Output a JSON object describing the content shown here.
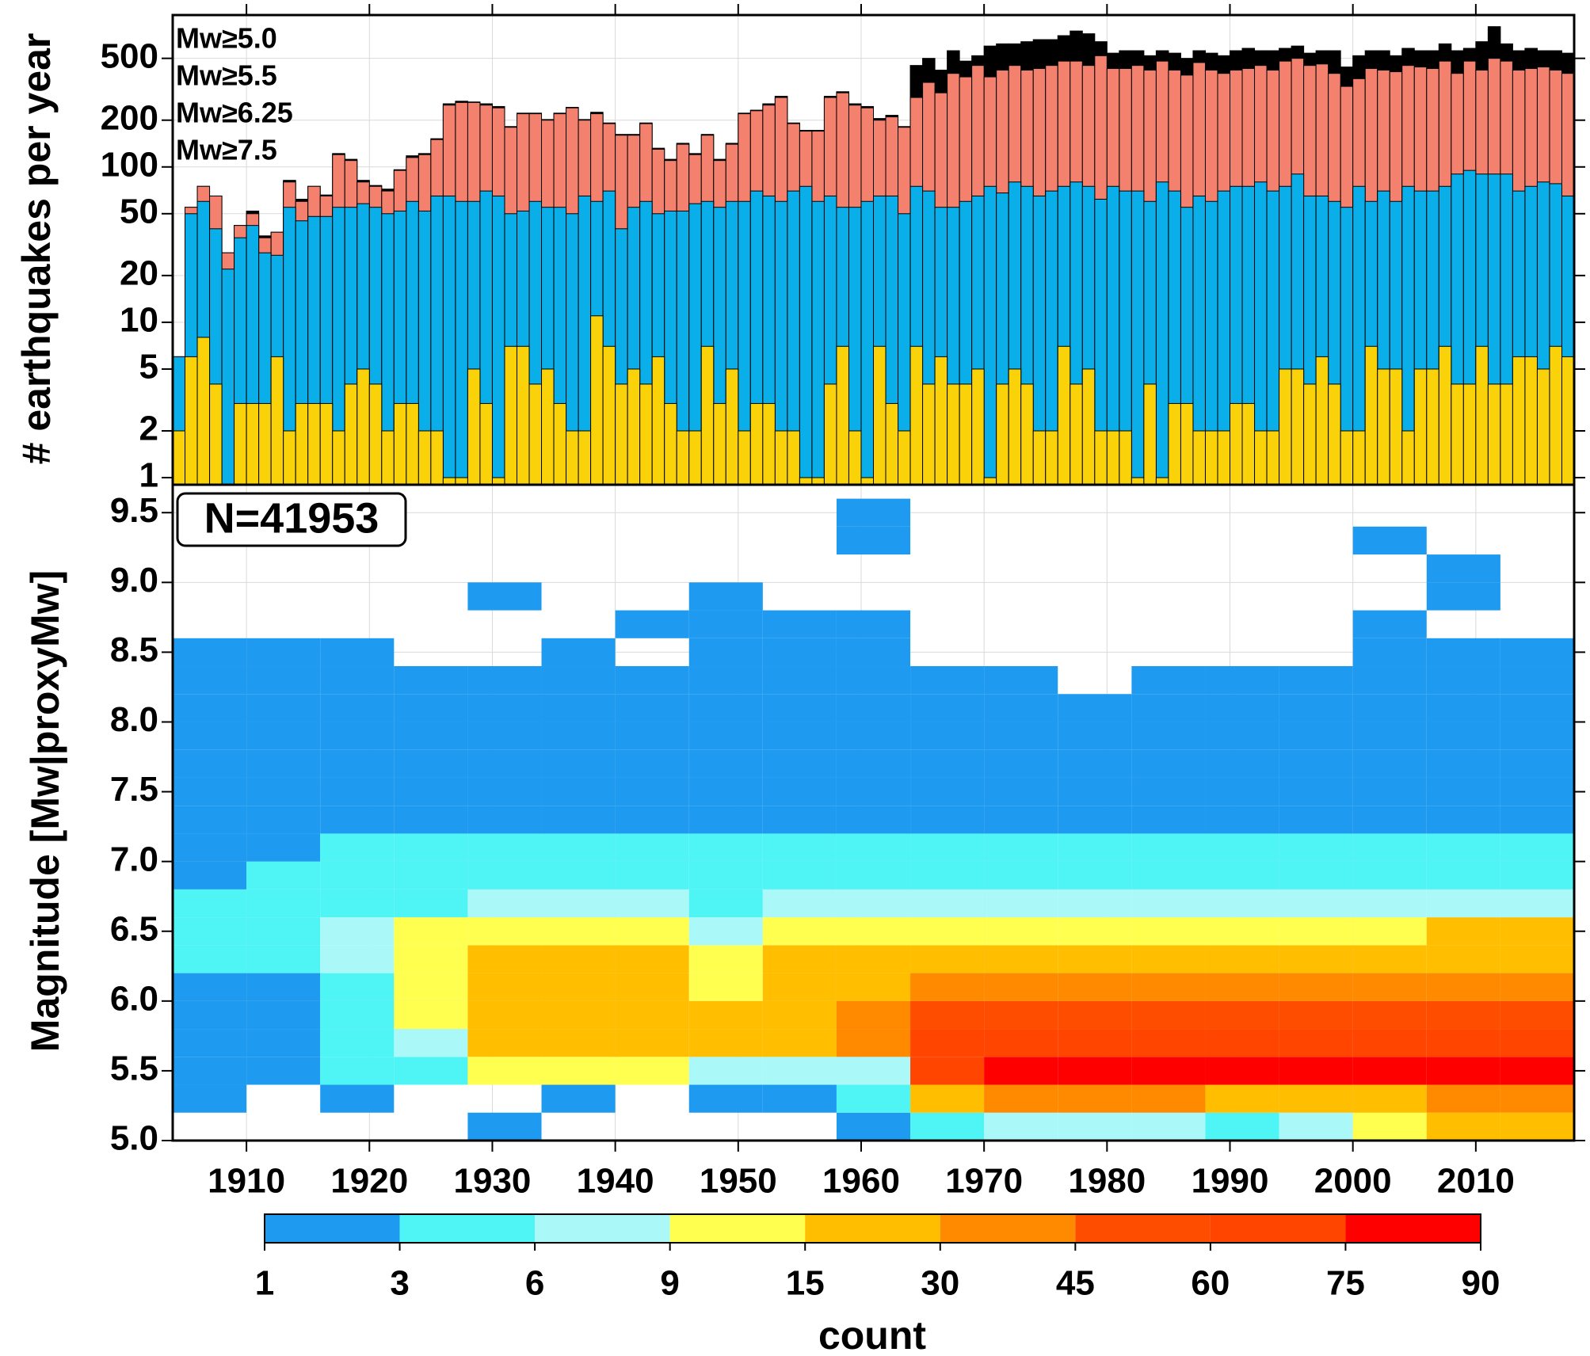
{
  "chart_data": [
    {
      "type": "bar",
      "ylabel": "# earthquakes per year",
      "log_scale": true,
      "grid": true,
      "legend": "upper left",
      "xlim": [
        1904,
        2018
      ],
      "ylim": [
        0.9,
        950
      ],
      "yticks": [
        1,
        2,
        5,
        10,
        20,
        50,
        100,
        200,
        500
      ],
      "x": [
        1904,
        1905,
        1906,
        1907,
        1908,
        1909,
        1910,
        1911,
        1912,
        1913,
        1914,
        1915,
        1916,
        1917,
        1918,
        1919,
        1920,
        1921,
        1922,
        1923,
        1924,
        1925,
        1926,
        1927,
        1928,
        1929,
        1930,
        1931,
        1932,
        1933,
        1934,
        1935,
        1936,
        1937,
        1938,
        1939,
        1940,
        1941,
        1942,
        1943,
        1944,
        1945,
        1946,
        1947,
        1948,
        1949,
        1950,
        1951,
        1952,
        1953,
        1954,
        1955,
        1956,
        1957,
        1958,
        1959,
        1960,
        1961,
        1962,
        1963,
        1964,
        1965,
        1966,
        1967,
        1968,
        1969,
        1970,
        1971,
        1972,
        1973,
        1974,
        1975,
        1976,
        1977,
        1978,
        1979,
        1980,
        1981,
        1982,
        1983,
        1984,
        1985,
        1986,
        1987,
        1988,
        1989,
        1990,
        1991,
        1992,
        1993,
        1994,
        1995,
        1996,
        1997,
        1998,
        1999,
        2000,
        2001,
        2002,
        2003,
        2004,
        2005,
        2006,
        2007,
        2008,
        2009,
        2010,
        2011,
        2012,
        2013,
        2014,
        2015,
        2016,
        2017
      ],
      "series": [
        {
          "name": "Mw≥5.0",
          "color": "#000000",
          "values": [
            6,
            55,
            75,
            65,
            28,
            42,
            52,
            36,
            38,
            82,
            62,
            75,
            66,
            122,
            112,
            82,
            76,
            72,
            96,
            118,
            122,
            152,
            255,
            265,
            262,
            255,
            245,
            182,
            222,
            222,
            202,
            222,
            242,
            202,
            225,
            192,
            162,
            162,
            192,
            132,
            112,
            142,
            122,
            162,
            112,
            142,
            222,
            232,
            255,
            285,
            192,
            172,
            172,
            285,
            305,
            255,
            245,
            205,
            215,
            182,
            450,
            500,
            420,
            560,
            480,
            520,
            600,
            620,
            620,
            640,
            660,
            660,
            700,
            750,
            720,
            640,
            540,
            560,
            560,
            520,
            560,
            540,
            500,
            560,
            540,
            520,
            560,
            580,
            560,
            560,
            580,
            600,
            540,
            560,
            560,
            440,
            520,
            560,
            560,
            520,
            580,
            560,
            560,
            620,
            560,
            580,
            640,
            800,
            620,
            560,
            580,
            560,
            560,
            540
          ]
        },
        {
          "name": "Mw≥5.5",
          "color": "#f4806e",
          "values": [
            6,
            55,
            75,
            65,
            28,
            42,
            50,
            35,
            38,
            80,
            60,
            75,
            65,
            120,
            110,
            80,
            75,
            70,
            95,
            115,
            120,
            150,
            250,
            260,
            260,
            250,
            240,
            180,
            220,
            220,
            200,
            220,
            240,
            200,
            220,
            190,
            160,
            160,
            190,
            130,
            110,
            140,
            120,
            160,
            110,
            140,
            220,
            230,
            250,
            280,
            190,
            170,
            170,
            280,
            300,
            250,
            240,
            200,
            210,
            180,
            280,
            350,
            300,
            400,
            380,
            450,
            380,
            420,
            450,
            420,
            430,
            450,
            480,
            480,
            450,
            520,
            430,
            430,
            450,
            420,
            480,
            420,
            390,
            470,
            420,
            400,
            420,
            430,
            450,
            420,
            480,
            500,
            450,
            460,
            400,
            330,
            370,
            430,
            420,
            410,
            450,
            440,
            430,
            480,
            400,
            480,
            420,
            500,
            480,
            420,
            430,
            440,
            420,
            400
          ]
        },
        {
          "name": "Mw≥6.25",
          "color": "#0aaee8",
          "values": [
            6,
            50,
            60,
            40,
            22,
            35,
            42,
            28,
            27,
            55,
            45,
            48,
            48,
            55,
            55,
            58,
            55,
            50,
            52,
            60,
            52,
            65,
            65,
            60,
            60,
            70,
            65,
            50,
            52,
            60,
            55,
            55,
            50,
            65,
            60,
            70,
            40,
            55,
            60,
            50,
            52,
            52,
            58,
            60,
            55,
            60,
            60,
            70,
            65,
            60,
            70,
            75,
            60,
            65,
            55,
            55,
            60,
            65,
            65,
            50,
            75,
            70,
            55,
            55,
            60,
            65,
            75,
            68,
            80,
            75,
            65,
            70,
            75,
            80,
            75,
            62,
            75,
            70,
            70,
            60,
            80,
            70,
            55,
            65,
            60,
            70,
            75,
            75,
            80,
            70,
            75,
            90,
            65,
            65,
            60,
            55,
            75,
            60,
            70,
            60,
            75,
            70,
            70,
            75,
            90,
            95,
            90,
            90,
            90,
            70,
            75,
            80,
            78,
            65
          ]
        },
        {
          "name": "Mw≥7.5",
          "color": "#f9d20a",
          "values": [
            2,
            6,
            8,
            4,
            0,
            3,
            3,
            3,
            6,
            2,
            3,
            3,
            3,
            2,
            4,
            5,
            4,
            2,
            3,
            3,
            2,
            2,
            1,
            1,
            5,
            3,
            1,
            7,
            7,
            4,
            5,
            3,
            2,
            2,
            11,
            7,
            4,
            5,
            4,
            6,
            3,
            2,
            2,
            7,
            3,
            5,
            2,
            3,
            3,
            2,
            2,
            1,
            1,
            4,
            7,
            2,
            1,
            7,
            3,
            2,
            7,
            4,
            6,
            4,
            4,
            5,
            1,
            4,
            5,
            4,
            2,
            2,
            7,
            4,
            5,
            2,
            2,
            2,
            1,
            4,
            1,
            3,
            3,
            2,
            2,
            2,
            3,
            3,
            2,
            2,
            5,
            5,
            4,
            6,
            4,
            2,
            2,
            7,
            5,
            5,
            2,
            5,
            5,
            7,
            4,
            4,
            7,
            4,
            4,
            6,
            6,
            5,
            7,
            6
          ]
        }
      ]
    },
    {
      "type": "heatmap",
      "ylabel": "Magnitude [Mw|proxyMw]",
      "annotation": "N=41953",
      "grid": true,
      "xlim": [
        1904,
        2018
      ],
      "ylim": [
        5.0,
        9.7
      ],
      "xticks": [
        1910,
        1920,
        1930,
        1940,
        1950,
        1960,
        1970,
        1980,
        1990,
        2000,
        2010
      ],
      "yticks": [
        {
          "value": 5,
          "label": "5.0"
        },
        5.5,
        {
          "value": 6,
          "label": "6.0"
        },
        6.5,
        {
          "value": 7,
          "label": "7.0"
        },
        7.5,
        {
          "value": 8,
          "label": "8.0"
        },
        8.5,
        {
          "value": 9,
          "label": "9.0"
        },
        9.5
      ],
      "xbins": [
        1904,
        1910,
        1916,
        1922,
        1928,
        1934,
        1940,
        1946,
        1952,
        1958,
        1964,
        1970,
        1976,
        1982,
        1988,
        1994,
        2000,
        2006,
        2012,
        2018
      ],
      "ybins": [
        5.0,
        5.2,
        5.4,
        5.6,
        5.8,
        6.0,
        6.2,
        6.4,
        6.6,
        6.8,
        7.0,
        7.2,
        7.4,
        7.6,
        7.8,
        8.0,
        8.2,
        8.4,
        8.6,
        8.8,
        9.0,
        9.2,
        9.4,
        9.6
      ],
      "z": [
        [
          0,
          0,
          0,
          0,
          1,
          0,
          0,
          0,
          0,
          1,
          4,
          8,
          8,
          6,
          5,
          6,
          10,
          15,
          15
        ],
        [
          1,
          0,
          1,
          0,
          0,
          1,
          0,
          2,
          2,
          3,
          25,
          35,
          40,
          30,
          25,
          25,
          25,
          35,
          35
        ],
        [
          2,
          2,
          3,
          5,
          12,
          12,
          10,
          8,
          8,
          8,
          70,
          80,
          80,
          78,
          78,
          78,
          80,
          82,
          82
        ],
        [
          2,
          2,
          4,
          8,
          20,
          20,
          18,
          15,
          25,
          40,
          65,
          70,
          65,
          65,
          65,
          68,
          70,
          70,
          70
        ],
        [
          2,
          2,
          4,
          10,
          20,
          20,
          18,
          15,
          25,
          35,
          45,
          50,
          50,
          50,
          48,
          50,
          52,
          55,
          55
        ],
        [
          2,
          2,
          5,
          10,
          20,
          20,
          18,
          12,
          22,
          25,
          30,
          32,
          32,
          32,
          32,
          32,
          35,
          35,
          35
        ],
        [
          3,
          3,
          6,
          10,
          18,
          18,
          15,
          10,
          18,
          20,
          22,
          22,
          22,
          22,
          22,
          22,
          22,
          25,
          25
        ],
        [
          3,
          3,
          6,
          9,
          12,
          12,
          10,
          8,
          10,
          12,
          14,
          14,
          14,
          14,
          14,
          14,
          14,
          15,
          15
        ],
        [
          3,
          3,
          4,
          5,
          6,
          6,
          6,
          5,
          6,
          7,
          7,
          7,
          7,
          7,
          7,
          7,
          7,
          7,
          7
        ],
        [
          2,
          3,
          4,
          4,
          4,
          4,
          4,
          4,
          4,
          5,
          4,
          4,
          4,
          4,
          4,
          4,
          5,
          5,
          4
        ],
        [
          2,
          2,
          3,
          3,
          3,
          3,
          3,
          3,
          3,
          3,
          3,
          3,
          3,
          3,
          3,
          3,
          3,
          3,
          3
        ],
        [
          2,
          2,
          2,
          2,
          2,
          2,
          2,
          2,
          2,
          2,
          2,
          2,
          2,
          2,
          2,
          2,
          2,
          2,
          2
        ],
        [
          1,
          1,
          1,
          1,
          1,
          2,
          1,
          1,
          1,
          2,
          1,
          1,
          1,
          1,
          1,
          1,
          1,
          2,
          1
        ],
        [
          1,
          1,
          1,
          1,
          1,
          1,
          1,
          1,
          1,
          1,
          1,
          1,
          1,
          1,
          1,
          1,
          1,
          1,
          1
        ],
        [
          1,
          1,
          1,
          1,
          1,
          1,
          1,
          1,
          1,
          1,
          1,
          1,
          1,
          1,
          1,
          1,
          1,
          1,
          1
        ],
        [
          1,
          1,
          1,
          1,
          1,
          1,
          1,
          1,
          1,
          1,
          1,
          1,
          1,
          1,
          1,
          1,
          1,
          1,
          1
        ],
        [
          1,
          1,
          1,
          1,
          1,
          1,
          1,
          1,
          1,
          1,
          1,
          1,
          0,
          1,
          1,
          1,
          1,
          1,
          1
        ],
        [
          1,
          1,
          1,
          0,
          0,
          1,
          0,
          1,
          1,
          1,
          0,
          0,
          0,
          0,
          0,
          0,
          1,
          1,
          1
        ],
        [
          0,
          0,
          0,
          0,
          0,
          0,
          1,
          1,
          1,
          1,
          0,
          0,
          0,
          0,
          0,
          0,
          1,
          0,
          0
        ],
        [
          0,
          0,
          0,
          0,
          1,
          0,
          0,
          1,
          0,
          0,
          0,
          0,
          0,
          0,
          0,
          0,
          0,
          1,
          0
        ],
        [
          0,
          0,
          0,
          0,
          0,
          0,
          0,
          0,
          0,
          0,
          0,
          0,
          0,
          0,
          0,
          0,
          0,
          1,
          0
        ],
        [
          0,
          0,
          0,
          0,
          0,
          0,
          0,
          0,
          0,
          1,
          0,
          0,
          0,
          0,
          0,
          0,
          1,
          0,
          0
        ],
        [
          0,
          0,
          0,
          0,
          0,
          0,
          0,
          0,
          0,
          1,
          0,
          0,
          0,
          0,
          0,
          0,
          0,
          0,
          0
        ]
      ],
      "colorbar": {
        "label": "count",
        "ticks": [
          1,
          3,
          6,
          9,
          15,
          30,
          45,
          60,
          75,
          90
        ],
        "colors": [
          "#1e9bf0",
          "#4ff4f4",
          "#aaf8f8",
          "#ffff50",
          "#ffbe00",
          "#ff8a00",
          "#ff4d00",
          "#ff4500",
          "#ff0000"
        ]
      }
    }
  ]
}
